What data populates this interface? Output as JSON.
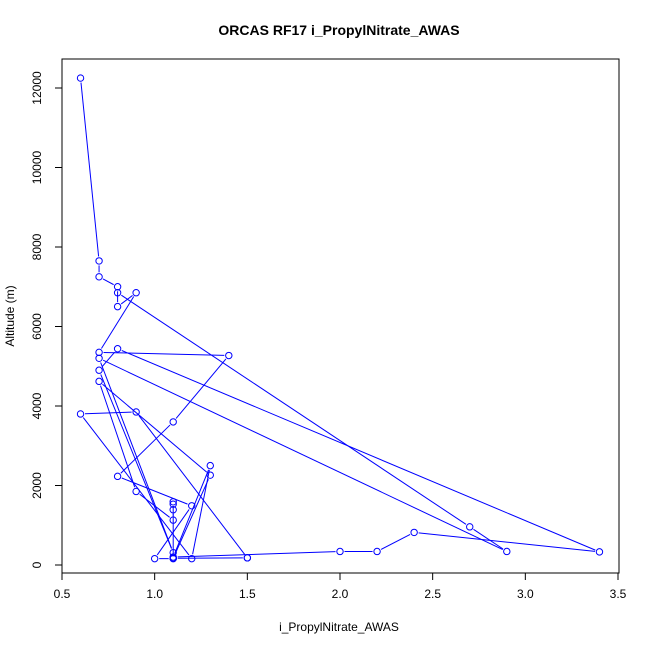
{
  "chart_data": {
    "type": "line",
    "title": "ORCAS RF17 i_PropylNitrate_AWAS",
    "xlabel": "i_PropylNitrate_AWAS",
    "ylabel": "Altitude (m)",
    "xlim": [
      0.5,
      3.5
    ],
    "ylim": [
      0,
      12500
    ],
    "xticks": [
      0.5,
      1.0,
      1.5,
      2.0,
      2.5,
      3.0,
      3.5
    ],
    "xtick_labels": [
      "0.5",
      "1.0",
      "1.5",
      "2.0",
      "2.5",
      "3.0",
      "3.5"
    ],
    "yticks": [
      0,
      2000,
      4000,
      6000,
      8000,
      10000,
      12000
    ],
    "ytick_labels": [
      "0",
      "2000",
      "4000",
      "6000",
      "8000",
      "10000",
      "12000"
    ],
    "grid": false,
    "series_color": "#0000ff",
    "x": [
      0.6,
      0.7,
      0.7,
      0.8,
      0.8,
      0.9,
      0.7,
      1.4,
      1.1,
      0.8,
      1.2,
      1.0,
      1.1,
      1.1,
      1.1,
      1.1,
      1.1,
      1.1,
      0.9,
      0.7,
      1.3,
      1.1,
      1.1,
      1.5,
      1.5,
      0.9,
      0.6,
      1.2,
      1.3,
      1.1,
      2.0,
      2.2,
      2.4,
      3.4,
      0.8,
      0.7,
      1.1,
      0.7,
      2.9,
      2.7,
      0.8
    ],
    "y": [
      12250,
      7650,
      7250,
      7000,
      6500,
      6850,
      5350,
      5270,
      3600,
      2230,
      1490,
      160,
      160,
      170,
      1590,
      1530,
      1390,
      1130,
      1850,
      4620,
      2260,
      170,
      170,
      180,
      180,
      3850,
      3800,
      160,
      2500,
      200,
      340,
      340,
      820,
      330,
      5440,
      4900,
      310,
      5200,
      340,
      960,
      6850
    ]
  }
}
